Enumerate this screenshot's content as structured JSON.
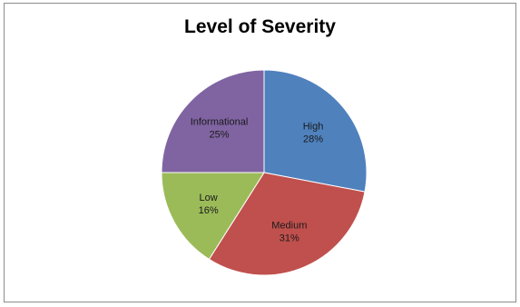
{
  "chart_data": {
    "type": "pie",
    "title": "Level of Severity",
    "slices": [
      {
        "label": "High",
        "value": 28,
        "display": "28%",
        "color": "#4f81bd"
      },
      {
        "label": "Medium",
        "value": 31,
        "display": "31%",
        "color": "#c0504d"
      },
      {
        "label": "Low",
        "value": 16,
        "display": "16%",
        "color": "#9bbb59"
      },
      {
        "label": "Informational",
        "value": 25,
        "display": "25%",
        "color": "#8064a2"
      }
    ],
    "start_angle": "top, clockwise",
    "legend": "none"
  }
}
